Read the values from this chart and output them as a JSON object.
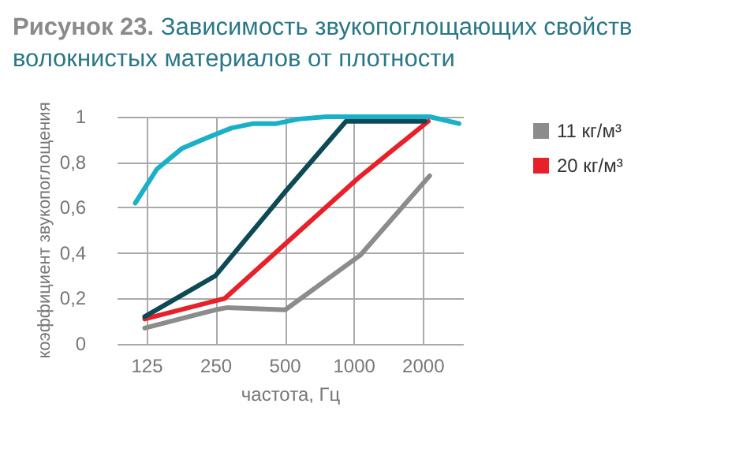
{
  "chart_data": {
    "type": "line",
    "title": "Рисунок 23. Зависимость звукопоглощающих свойств волокнистых материалов от плотности",
    "xlabel": "частота, Гц",
    "ylabel": "коэффициент звукопоглощения",
    "log": "x",
    "xlim": [
      93,
      3000
    ],
    "xticks": [
      125,
      250,
      500,
      1000,
      2000
    ],
    "ylim": [
      0,
      1
    ],
    "yticks": [
      0,
      {
        "value": 0.2,
        "label": "0,2"
      },
      {
        "value": 0.4,
        "label": "0,4"
      },
      {
        "value": 0.6,
        "label": "0,6"
      },
      {
        "value": 0.8,
        "label": "0,8"
      },
      1
    ],
    "grid": true,
    "legend": "right",
    "marker": "none",
    "line_style": "solid",
    "series": [
      {
        "name": "11 кг/м³",
        "color": "#8c8c8c",
        "x": [
          122,
          248,
          280,
          500,
          1060,
          2130
        ],
        "values": [
          0.07,
          0.15,
          0.16,
          0.15,
          0.39,
          0.74
        ]
      },
      {
        "name": "20 кг/м³",
        "color": "#e8202a",
        "x": [
          122,
          272,
          500,
          1040,
          2100
        ],
        "values": [
          0.11,
          0.2,
          0.44,
          0.73,
          0.98
        ]
      },
      {
        "color": "#0d4a55",
        "x": [
          122,
          248,
          500,
          920,
          2030
        ],
        "values": [
          0.12,
          0.3,
          0.67,
          0.98,
          0.98
        ]
      },
      {
        "color": "#1ab0c8",
        "x": [
          111,
          138,
          177,
          231,
          291,
          363,
          457,
          574,
          754,
          2130,
          2860
        ],
        "values": [
          0.62,
          0.77,
          0.86,
          0.91,
          0.95,
          0.97,
          0.97,
          0.99,
          1,
          1,
          0.97
        ]
      }
    ]
  }
}
